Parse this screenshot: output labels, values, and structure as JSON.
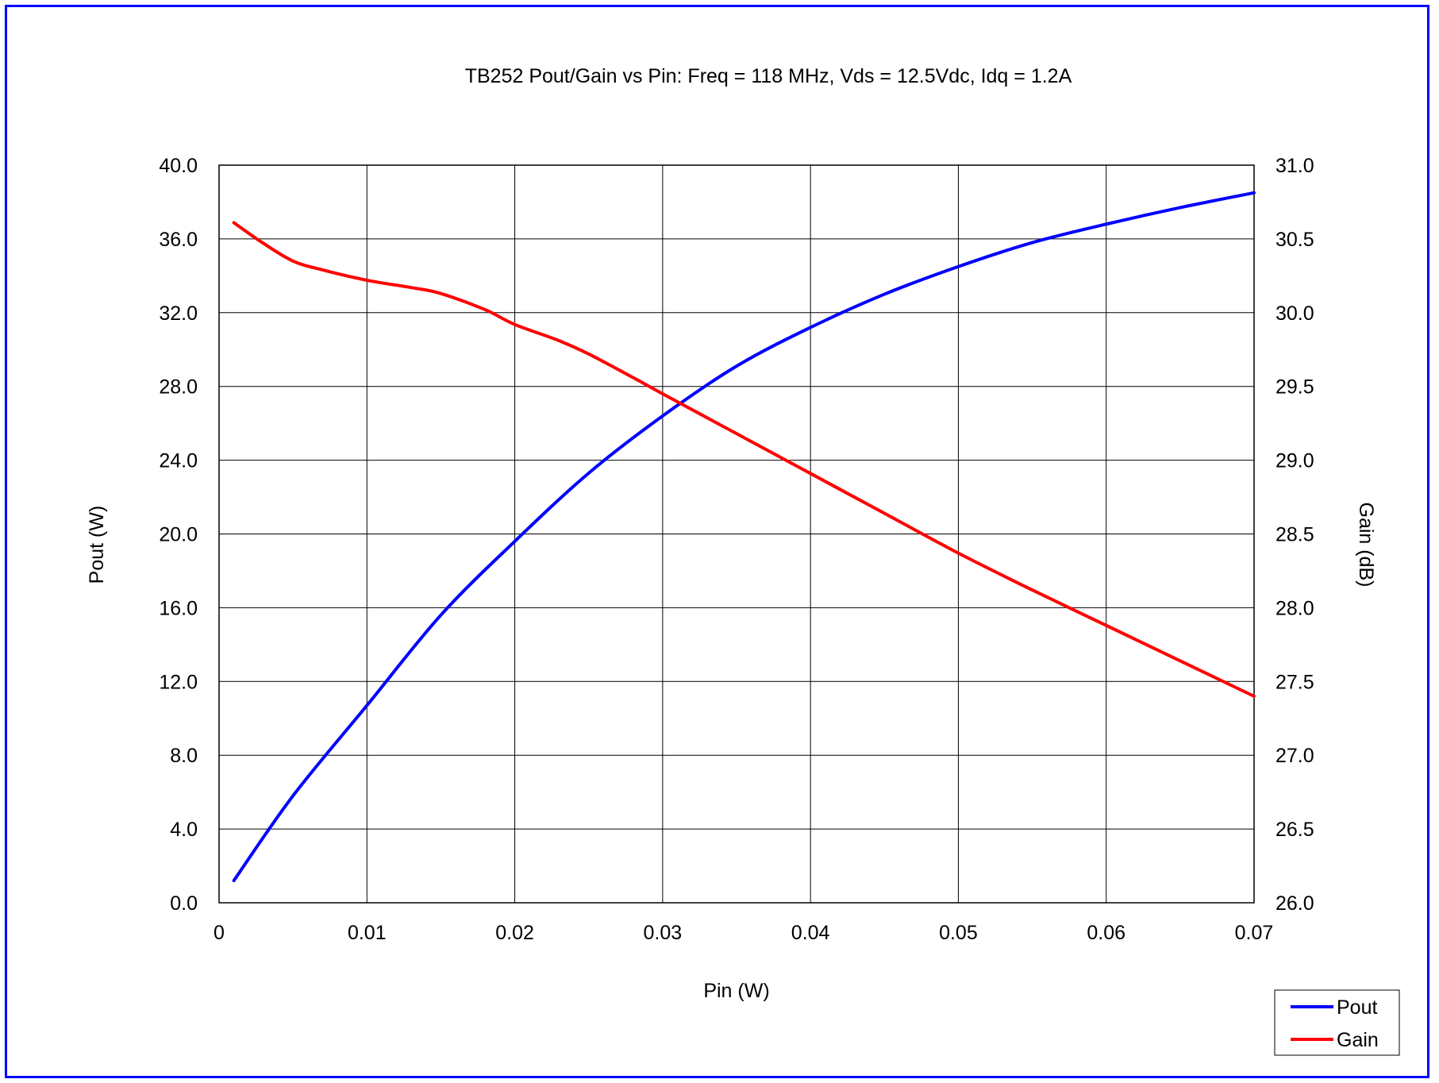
{
  "chart_data": {
    "type": "line",
    "title": "TB252 Pout/Gain vs Pin: Freq = 118 MHz, Vds = 12.5Vdc, Idq = 1.2A",
    "xlabel": "Pin (W)",
    "ylabel": "Pout (W)",
    "y2label": "Gain (dB)",
    "xlim": [
      0,
      0.07
    ],
    "ylim": [
      0,
      40
    ],
    "y2lim": [
      26,
      31
    ],
    "xticks": [
      "0",
      "0.01",
      "0.02",
      "0.03",
      "0.04",
      "0.05",
      "0.06",
      "0.07"
    ],
    "yticks": [
      "0.0",
      "4.0",
      "8.0",
      "12.0",
      "16.0",
      "20.0",
      "24.0",
      "28.0",
      "32.0",
      "36.0",
      "40.0"
    ],
    "y2ticks": [
      "26.0",
      "26.5",
      "27.0",
      "27.5",
      "28.0",
      "28.5",
      "29.0",
      "29.5",
      "30.0",
      "30.5",
      "31.0"
    ],
    "grid": true,
    "legend_position": "bottom-right",
    "series": [
      {
        "name": "Pout",
        "axis": "left",
        "color": "#0000ff",
        "x": [
          0.001,
          0.005,
          0.01,
          0.015,
          0.02,
          0.025,
          0.03,
          0.035,
          0.04,
          0.045,
          0.05,
          0.055,
          0.06,
          0.065,
          0.07
        ],
        "y": [
          1.2,
          5.8,
          10.7,
          15.6,
          19.6,
          23.3,
          26.4,
          29.1,
          31.2,
          33.0,
          34.5,
          35.8,
          36.8,
          37.7,
          38.5
        ]
      },
      {
        "name": "Gain",
        "axis": "right",
        "color": "#ff0000",
        "x": [
          0.001,
          0.003,
          0.005,
          0.007,
          0.01,
          0.013,
          0.015,
          0.018,
          0.02,
          0.023,
          0.025,
          0.028,
          0.03,
          0.035,
          0.04,
          0.045,
          0.05,
          0.055,
          0.06,
          0.065,
          0.07
        ],
        "y": [
          30.61,
          30.47,
          30.35,
          30.29,
          30.22,
          30.17,
          30.13,
          30.02,
          29.92,
          29.81,
          29.72,
          29.56,
          29.45,
          29.18,
          28.91,
          28.64,
          28.37,
          28.12,
          27.88,
          27.64,
          27.4
        ]
      }
    ]
  }
}
